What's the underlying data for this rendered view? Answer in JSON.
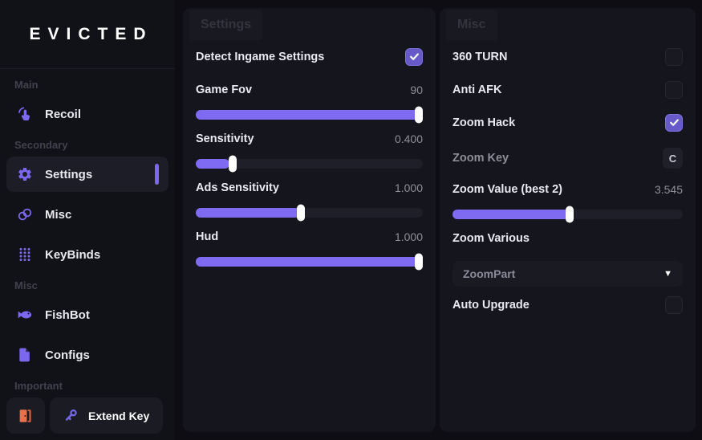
{
  "app": {
    "logo": "EVICTED"
  },
  "colors": {
    "accent": "#7b68ee",
    "checked": "#675ac8",
    "slider_fill": "#7e6bf2",
    "exit_icon": "#e8714d"
  },
  "sidebar": {
    "sections": [
      {
        "label": "Main"
      },
      {
        "label": "Secondary"
      },
      {
        "label": "Misc"
      },
      {
        "label": "Important"
      }
    ],
    "items": {
      "recoil": {
        "label": "Recoil",
        "icon": "mouse-click-icon"
      },
      "settings": {
        "label": "Settings",
        "icon": "gear-icon",
        "selected": true
      },
      "misc": {
        "label": "Misc",
        "icon": "link-icon"
      },
      "keybinds": {
        "label": "KeyBinds",
        "icon": "keypad-icon"
      },
      "fishbot": {
        "label": "FishBot",
        "icon": "fish-icon"
      },
      "configs": {
        "label": "Configs",
        "icon": "file-icon"
      }
    },
    "footer": {
      "exit_icon": "door-exit-icon",
      "extend_key_label": "Extend Key",
      "extend_key_icon": "key-icon"
    }
  },
  "panels": [
    {
      "title": "Settings",
      "rows": [
        {
          "type": "toggle",
          "label": "Detect Ingame Settings",
          "checked": true
        },
        {
          "type": "slider",
          "label": "Game Fov",
          "value": "90",
          "percent": 100
        },
        {
          "type": "slider",
          "label": "Sensitivity",
          "value": "0.400",
          "percent": 15
        },
        {
          "type": "slider",
          "label": "Ads Sensitivity",
          "value": "1.000",
          "percent": 46
        },
        {
          "type": "slider",
          "label": "Hud",
          "value": "1.000",
          "percent": 100
        }
      ]
    },
    {
      "title": "Misc",
      "rows": [
        {
          "type": "toggle",
          "label": "360 TURN",
          "checked": false
        },
        {
          "type": "toggle",
          "label": "Anti AFK",
          "checked": false
        },
        {
          "type": "toggle",
          "label": "Zoom Hack",
          "checked": true
        },
        {
          "type": "keybind",
          "label": "Zoom Key",
          "key": "C"
        },
        {
          "type": "slider",
          "label": "Zoom Value (best 2)",
          "value": "3.545",
          "percent": 51
        },
        {
          "type": "label",
          "label": "Zoom Various"
        },
        {
          "type": "select",
          "value": "ZoomPart"
        },
        {
          "type": "toggle",
          "label": "Auto Upgrade",
          "checked": false
        }
      ]
    }
  ]
}
